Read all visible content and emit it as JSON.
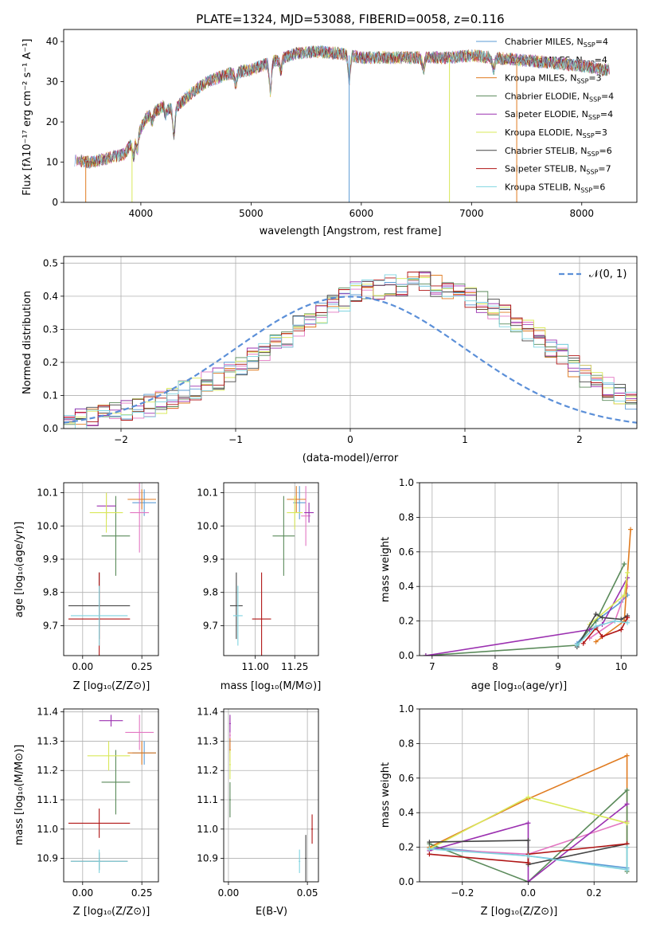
{
  "colors": {
    "Chabrier MILES": "#5b9bd5",
    "Salpeter MILES": "#e377c2",
    "Kroupa MILES": "#e07b20",
    "Chabrier ELODIE": "#5a8a5a",
    "Salpeter ELODIE": "#9b30b0",
    "Kroupa ELODIE": "#d9e85a",
    "Chabrier STELIB": "#444444",
    "Salpeter STELIB": "#b01515",
    "Kroupa STELIB": "#7fd4e0"
  },
  "chart_data": [
    {
      "type": "line",
      "title": "PLATE=1324, MJD=53088, FIBERID=0058, z=0.116",
      "xlabel": "wavelength [Angstrom, rest frame]",
      "ylabel": "Flux [fλ10⁻¹⁷ erg cm⁻² s⁻¹ A⁻¹]",
      "xlim": [
        3300,
        8500
      ],
      "ylim": [
        0,
        43
      ],
      "xticks": [
        "4000",
        "5000",
        "6000",
        "7000",
        "8000"
      ],
      "yticks": [
        "0",
        "10",
        "20",
        "30",
        "40"
      ],
      "legend_position": "right",
      "legend": [
        {
          "name": "Chabrier MILES, N",
          "sub": "SSP",
          "suffix": "=4"
        },
        {
          "name": "Salpeter MILES, N",
          "sub": "SSP",
          "suffix": "=4"
        },
        {
          "name": "Kroupa MILES, N",
          "sub": "SSP",
          "suffix": "=3"
        },
        {
          "name": "Chabrier ELODIE, N",
          "sub": "SSP",
          "suffix": "=4"
        },
        {
          "name": "Salpeter ELODIE, N",
          "sub": "SSP",
          "suffix": "=4"
        },
        {
          "name": "Kroupa ELODIE, N",
          "sub": "SSP",
          "suffix": "=3"
        },
        {
          "name": "Chabrier STELIB, N",
          "sub": "SSP",
          "suffix": "=6"
        },
        {
          "name": "Salpeter STELIB, N",
          "sub": "SSP",
          "suffix": "=7"
        },
        {
          "name": "Kroupa STELIB, N",
          "sub": "SSP",
          "suffix": "=6"
        }
      ],
      "continuum": {
        "x": [
          3400,
          3550,
          3700,
          3850,
          3950,
          4050,
          4200,
          4300,
          4450,
          4600,
          4800,
          5000,
          5200,
          5400,
          5600,
          5800,
          6000,
          6200,
          6400,
          6600,
          6800,
          7000,
          7200,
          7400,
          7600,
          7800,
          8000,
          8200
        ],
        "y": [
          10.5,
          10,
          11,
          12,
          16,
          21,
          24,
          23,
          27,
          30,
          32,
          33,
          35,
          37,
          37.5,
          37,
          36,
          36,
          36,
          36,
          36,
          36.5,
          36,
          35.5,
          35,
          34.5,
          34,
          33
        ]
      }
    },
    {
      "type": "bar",
      "xlabel": "(data-model)/error",
      "ylabel": "Normed distribution",
      "xlim": [
        -2.5,
        2.5
      ],
      "ylim": [
        0,
        0.52
      ],
      "xticks": [
        "−2",
        "−1",
        "0",
        "1",
        "2"
      ],
      "yticks": [
        "0.0",
        "0.1",
        "0.2",
        "0.3",
        "0.4",
        "0.5"
      ],
      "legend": "𝒩(0, 1)",
      "bin_start": -2.5,
      "bin_width": 0.1,
      "values": [
        0.02,
        0.03,
        0.03,
        0.04,
        0.05,
        0.05,
        0.06,
        0.07,
        0.08,
        0.09,
        0.11,
        0.12,
        0.14,
        0.15,
        0.17,
        0.19,
        0.21,
        0.23,
        0.25,
        0.28,
        0.31,
        0.33,
        0.35,
        0.37,
        0.39,
        0.41,
        0.42,
        0.42,
        0.43,
        0.43,
        0.44,
        0.44,
        0.43,
        0.42,
        0.41,
        0.4,
        0.38,
        0.36,
        0.34,
        0.32,
        0.3,
        0.27,
        0.25,
        0.22,
        0.19,
        0.16,
        0.14,
        0.12,
        0.1,
        0.08
      ]
    },
    {
      "type": "scatter",
      "xlabel": "Z [log₁₀(Z/Z⊙)]",
      "ylabel": "age  [log₁₀(age/yr)]",
      "xlim": [
        -0.08,
        0.32
      ],
      "ylim": [
        9.61,
        10.13
      ],
      "xticks": [
        "0.00",
        "0.25"
      ],
      "yticks": [
        "9.7",
        "9.8",
        "9.9",
        "10.0",
        "10.1"
      ]
    },
    {
      "type": "scatter",
      "xlabel": "mass [log₁₀(M/M⊙)]",
      "xlim": [
        10.8,
        11.4
      ],
      "ylim": [
        9.61,
        10.13
      ],
      "xticks": [
        "11.00",
        "11.25"
      ],
      "yticks": [
        "9.7",
        "9.8",
        "9.9",
        "10.0",
        "10.1"
      ]
    },
    {
      "type": "line",
      "xlabel": "age  [log₁₀(age/yr)]",
      "ylabel": "mass weight",
      "xlim": [
        6.8,
        10.25
      ],
      "ylim": [
        0,
        1
      ],
      "xticks": [
        "7",
        "8",
        "9",
        "10"
      ],
      "yticks": [
        "0.0",
        "0.2",
        "0.4",
        "0.6",
        "0.8",
        "1.0"
      ]
    },
    {
      "type": "scatter",
      "xlabel": "Z [log₁₀(Z/Z⊙)]",
      "ylabel": "mass [log₁₀(M/M⊙)]",
      "xlim": [
        -0.08,
        0.32
      ],
      "ylim": [
        10.82,
        11.41
      ],
      "xticks": [
        "0.00",
        "0.25"
      ],
      "yticks": [
        "10.9",
        "11.0",
        "11.1",
        "11.2",
        "11.3",
        "11.4"
      ]
    },
    {
      "type": "scatter",
      "xlabel": "E(B-V)",
      "xlim": [
        -0.003,
        0.057
      ],
      "ylim": [
        10.82,
        11.41
      ],
      "xticks": [
        "0.00",
        "0.05"
      ],
      "yticks": [
        "10.9",
        "11.0",
        "11.1",
        "11.2",
        "11.3",
        "11.4"
      ]
    },
    {
      "type": "line",
      "xlabel": "Z [log₁₀(Z/Z⊙)]",
      "ylabel": "mass weight",
      "xlim": [
        -0.33,
        0.33
      ],
      "ylim": [
        0,
        1
      ],
      "xticks": [
        "−0.2",
        "0.0",
        "0.2"
      ],
      "yticks": [
        "0.0",
        "0.2",
        "0.4",
        "0.6",
        "0.8",
        "1.0"
      ]
    }
  ]
}
